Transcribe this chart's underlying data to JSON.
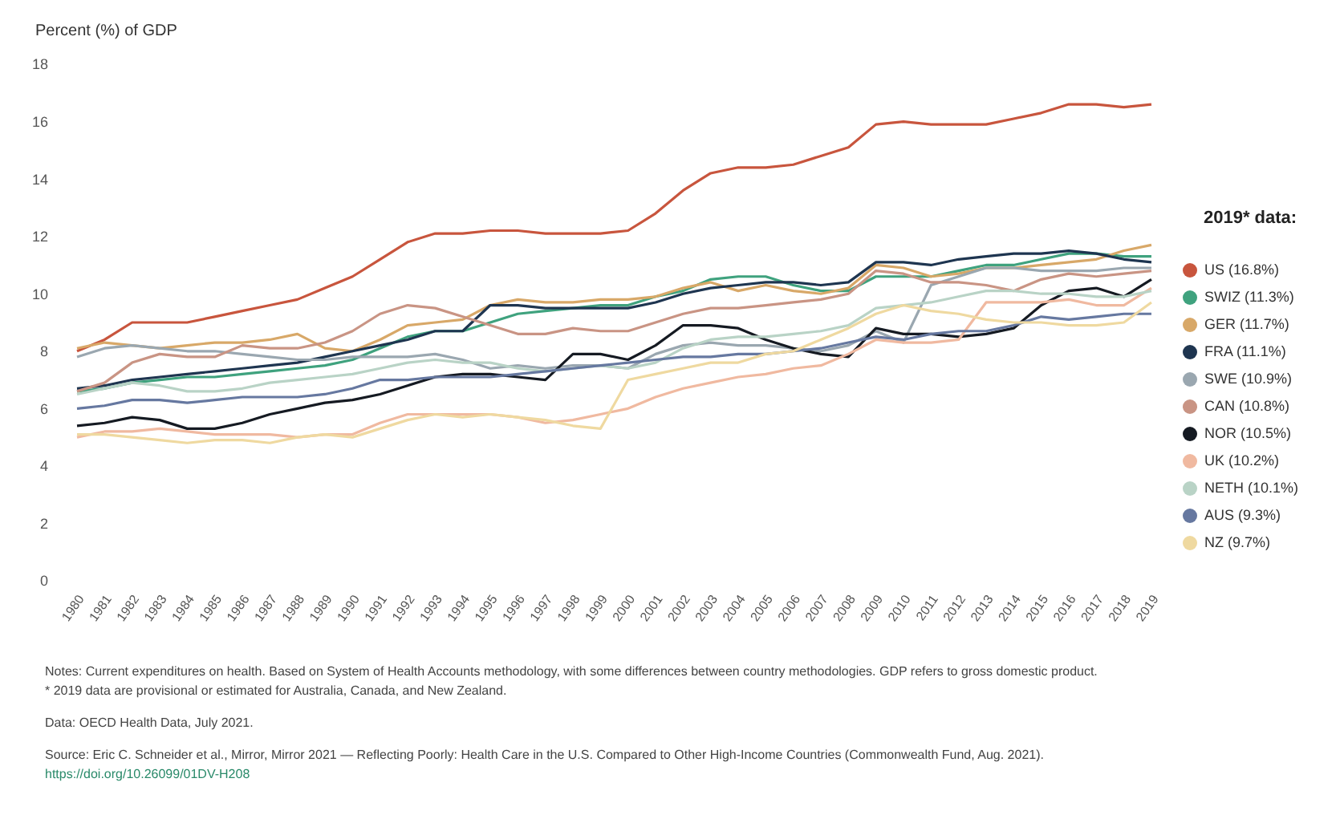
{
  "chart_data": {
    "type": "line",
    "ylabel": "Percent (%) of GDP",
    "legend_title": "2019* data:",
    "categories": [
      "1980",
      "1981",
      "1982",
      "1983",
      "1984",
      "1985",
      "1986",
      "1987",
      "1988",
      "1989",
      "1990",
      "1991",
      "1992",
      "1993",
      "1994",
      "1995",
      "1996",
      "1997",
      "1998",
      "1999",
      "2000",
      "2001",
      "2002",
      "2003",
      "2004",
      "2005",
      "2006",
      "2007",
      "2008",
      "2009",
      "2010",
      "2011",
      "2012",
      "2013",
      "2014",
      "2015",
      "2016",
      "2017",
      "2018",
      "2019"
    ],
    "ylim": [
      0,
      18
    ],
    "yticks": [
      0,
      2,
      4,
      6,
      8,
      10,
      12,
      14,
      16,
      18
    ],
    "grid": false,
    "legend": "right",
    "marker": "none",
    "line_style": "solid",
    "series": [
      {
        "name": "US (16.8%)",
        "color": "#c8553d",
        "values": [
          8.0,
          8.4,
          9.0,
          9.0,
          9.0,
          9.2,
          9.4,
          9.6,
          9.8,
          10.2,
          10.6,
          11.2,
          11.8,
          12.1,
          12.1,
          12.2,
          12.2,
          12.1,
          12.1,
          12.1,
          12.2,
          12.8,
          13.6,
          14.2,
          14.4,
          14.4,
          14.5,
          14.8,
          15.1,
          15.9,
          16.0,
          15.9,
          15.9,
          15.9,
          16.1,
          16.3,
          16.6,
          16.6,
          16.5,
          16.6
        ]
      },
      {
        "name": "SWIZ (11.3%)",
        "color": "#3fa27e",
        "values": [
          6.6,
          6.7,
          6.9,
          7.0,
          7.1,
          7.1,
          7.2,
          7.3,
          7.4,
          7.5,
          7.7,
          8.1,
          8.5,
          8.7,
          8.7,
          9.0,
          9.3,
          9.4,
          9.5,
          9.6,
          9.6,
          9.9,
          10.1,
          10.5,
          10.6,
          10.6,
          10.3,
          10.1,
          10.1,
          10.6,
          10.6,
          10.6,
          10.8,
          11.0,
          11.0,
          11.2,
          11.4,
          11.4,
          11.3,
          11.3
        ]
      },
      {
        "name": "GER (11.7%)",
        "color": "#d8a868",
        "values": [
          8.1,
          8.3,
          8.2,
          8.1,
          8.2,
          8.3,
          8.3,
          8.4,
          8.6,
          8.1,
          8.0,
          8.4,
          8.9,
          9.0,
          9.1,
          9.6,
          9.8,
          9.7,
          9.7,
          9.8,
          9.8,
          9.9,
          10.2,
          10.4,
          10.1,
          10.3,
          10.1,
          10.0,
          10.2,
          11.0,
          10.9,
          10.6,
          10.7,
          10.9,
          10.9,
          11.0,
          11.1,
          11.2,
          11.5,
          11.7
        ]
      },
      {
        "name": "FRA (11.1%)",
        "color": "#1e3550",
        "values": [
          6.7,
          6.8,
          7.0,
          7.1,
          7.2,
          7.3,
          7.4,
          7.5,
          7.6,
          7.8,
          8.0,
          8.2,
          8.4,
          8.7,
          8.7,
          9.6,
          9.6,
          9.5,
          9.5,
          9.5,
          9.5,
          9.7,
          10.0,
          10.2,
          10.3,
          10.4,
          10.4,
          10.3,
          10.4,
          11.1,
          11.1,
          11.0,
          11.2,
          11.3,
          11.4,
          11.4,
          11.5,
          11.4,
          11.2,
          11.1
        ]
      },
      {
        "name": "SWE (10.9%)",
        "color": "#9aa7b0",
        "values": [
          7.8,
          8.1,
          8.2,
          8.1,
          8.0,
          8.0,
          7.9,
          7.8,
          7.7,
          7.7,
          7.8,
          7.8,
          7.8,
          7.9,
          7.7,
          7.4,
          7.5,
          7.4,
          7.5,
          7.5,
          7.4,
          7.9,
          8.2,
          8.3,
          8.2,
          8.2,
          8.1,
          8.0,
          8.2,
          8.7,
          8.3,
          10.3,
          10.6,
          10.9,
          10.9,
          10.8,
          10.8,
          10.8,
          10.9,
          10.9
        ]
      },
      {
        "name": "CAN (10.8%)",
        "color": "#c99484",
        "values": [
          6.6,
          6.9,
          7.6,
          7.9,
          7.8,
          7.8,
          8.2,
          8.1,
          8.1,
          8.3,
          8.7,
          9.3,
          9.6,
          9.5,
          9.2,
          8.9,
          8.6,
          8.6,
          8.8,
          8.7,
          8.7,
          9.0,
          9.3,
          9.5,
          9.5,
          9.6,
          9.7,
          9.8,
          10.0,
          10.8,
          10.7,
          10.4,
          10.4,
          10.3,
          10.1,
          10.5,
          10.7,
          10.6,
          10.7,
          10.8
        ]
      },
      {
        "name": "NOR (10.5%)",
        "color": "#151a22",
        "values": [
          5.4,
          5.5,
          5.7,
          5.6,
          5.3,
          5.3,
          5.5,
          5.8,
          6.0,
          6.2,
          6.3,
          6.5,
          6.8,
          7.1,
          7.2,
          7.2,
          7.1,
          7.0,
          7.9,
          7.9,
          7.7,
          8.2,
          8.9,
          8.9,
          8.8,
          8.4,
          8.1,
          7.9,
          7.8,
          8.8,
          8.6,
          8.6,
          8.5,
          8.6,
          8.8,
          9.6,
          10.1,
          10.2,
          9.9,
          10.5
        ]
      },
      {
        "name": "UK (10.2%)",
        "color": "#f0b9a0",
        "values": [
          5.0,
          5.2,
          5.2,
          5.3,
          5.2,
          5.1,
          5.1,
          5.1,
          5.0,
          5.1,
          5.1,
          5.5,
          5.8,
          5.8,
          5.8,
          5.8,
          5.7,
          5.5,
          5.6,
          5.8,
          6.0,
          6.4,
          6.7,
          6.9,
          7.1,
          7.2,
          7.4,
          7.5,
          7.9,
          8.4,
          8.3,
          8.3,
          8.4,
          9.7,
          9.7,
          9.7,
          9.8,
          9.6,
          9.6,
          10.2
        ]
      },
      {
        "name": "NETH (10.1%)",
        "color": "#b9d3c6",
        "values": [
          6.5,
          6.7,
          6.9,
          6.8,
          6.6,
          6.6,
          6.7,
          6.9,
          7.0,
          7.1,
          7.2,
          7.4,
          7.6,
          7.7,
          7.6,
          7.6,
          7.4,
          7.3,
          7.4,
          7.5,
          7.4,
          7.6,
          8.1,
          8.4,
          8.5,
          8.5,
          8.6,
          8.7,
          8.9,
          9.5,
          9.6,
          9.7,
          9.9,
          10.1,
          10.1,
          10.0,
          10.0,
          9.9,
          9.9,
          10.1
        ]
      },
      {
        "name": "AUS (9.3%)",
        "color": "#6678a0",
        "values": [
          6.0,
          6.1,
          6.3,
          6.3,
          6.2,
          6.3,
          6.4,
          6.4,
          6.4,
          6.5,
          6.7,
          7.0,
          7.0,
          7.1,
          7.1,
          7.1,
          7.2,
          7.3,
          7.4,
          7.5,
          7.6,
          7.7,
          7.8,
          7.8,
          7.9,
          7.9,
          8.0,
          8.1,
          8.3,
          8.5,
          8.4,
          8.6,
          8.7,
          8.7,
          8.9,
          9.2,
          9.1,
          9.2,
          9.3,
          9.3
        ]
      },
      {
        "name": "NZ (9.7%)",
        "color": "#efd9a0",
        "values": [
          5.1,
          5.1,
          5.0,
          4.9,
          4.8,
          4.9,
          4.9,
          4.8,
          5.0,
          5.1,
          5.0,
          5.3,
          5.6,
          5.8,
          5.7,
          5.8,
          5.7,
          5.6,
          5.4,
          5.3,
          7.0,
          7.2,
          7.4,
          7.6,
          7.6,
          7.9,
          8.0,
          8.4,
          8.8,
          9.3,
          9.6,
          9.4,
          9.3,
          9.1,
          9.0,
          9.0,
          8.9,
          8.9,
          9.0,
          9.7
        ]
      }
    ],
    "annotations": [
      "Notes: Current expenditures on health. Based on System of Health Accounts methodology, with some differences between country methodologies. GDP refers to gross domestic product.",
      "* 2019 data are provisional or estimated for Australia, Canada, and New Zealand.",
      "Data: OECD Health Data, July 2021.",
      "Source: Eric C. Schneider et al., Mirror, Mirror 2021 — Reflecting Poorly: Health Care in the U.S. Compared to Other High-Income Countries (Commonwealth Fund, Aug. 2021).",
      "https://doi.org/10.26099/01DV-H208"
    ]
  }
}
